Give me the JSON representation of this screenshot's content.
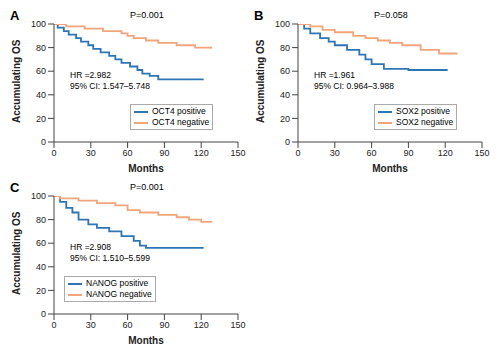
{
  "chart_data": [
    {
      "type": "step",
      "title": "A",
      "xlabel": "Months",
      "ylabel": "Accumulating OS",
      "xlim": [
        0,
        150
      ],
      "xticks": [
        0,
        30,
        60,
        90,
        120,
        150
      ],
      "ylim": [
        0,
        100
      ],
      "yticks": [
        0,
        20,
        40,
        60,
        80,
        100
      ],
      "grid": false,
      "annotations": [
        "P=0.001",
        "HR =2.982",
        "95% CI: 1.547–5.748"
      ],
      "series": [
        {
          "name": "OCT4 positive",
          "color": "#2E75B6",
          "x": [
            0,
            3,
            8,
            12,
            18,
            22,
            28,
            32,
            38,
            45,
            50,
            55,
            62,
            68,
            72,
            78,
            85,
            122
          ],
          "values": [
            100,
            97,
            94,
            91,
            88,
            85,
            82,
            79,
            76,
            73,
            70,
            67,
            64,
            61,
            58,
            56,
            53,
            53
          ]
        },
        {
          "name": "OCT4 negative",
          "color": "#F2A57A",
          "x": [
            0,
            10,
            25,
            40,
            55,
            60,
            65,
            75,
            85,
            100,
            115,
            128
          ],
          "values": [
            100,
            98,
            96,
            94,
            92,
            90,
            88,
            86,
            84,
            82,
            80,
            79
          ]
        }
      ]
    },
    {
      "type": "step",
      "title": "B",
      "xlabel": "Months",
      "ylabel": "Accumulating OS",
      "xlim": [
        0,
        150
      ],
      "xticks": [
        0,
        30,
        60,
        90,
        120,
        150
      ],
      "ylim": [
        0,
        100
      ],
      "yticks": [
        0,
        20,
        40,
        60,
        80,
        100
      ],
      "grid": false,
      "annotations": [
        "P=0.058",
        "HR =1.961",
        "95% CI: 0.964–3.988"
      ],
      "series": [
        {
          "name": "SOX2 positive",
          "color": "#2E75B6",
          "x": [
            0,
            5,
            10,
            18,
            25,
            30,
            40,
            50,
            55,
            60,
            70,
            90,
            122
          ],
          "values": [
            100,
            96,
            92,
            88,
            85,
            82,
            78,
            74,
            70,
            66,
            62,
            61,
            61
          ]
        },
        {
          "name": "SOX2 negative",
          "color": "#F2A57A",
          "x": [
            0,
            10,
            20,
            30,
            45,
            55,
            65,
            75,
            85,
            100,
            115,
            130
          ],
          "values": [
            100,
            98,
            95,
            93,
            90,
            88,
            86,
            84,
            82,
            78,
            75,
            75
          ]
        }
      ]
    },
    {
      "type": "step",
      "title": "C",
      "xlabel": "Months",
      "ylabel": "Accumulating OS",
      "xlim": [
        0,
        150
      ],
      "xticks": [
        0,
        30,
        60,
        90,
        120,
        150
      ],
      "ylim": [
        0,
        100
      ],
      "yticks": [
        0,
        20,
        40,
        60,
        80,
        100
      ],
      "grid": false,
      "annotations": [
        "P=0.001",
        "HR =2.908",
        "95% CI: 1.510–5.599"
      ],
      "series": [
        {
          "name": "NANOG positive",
          "color": "#2E75B6",
          "x": [
            0,
            5,
            10,
            15,
            20,
            28,
            35,
            45,
            55,
            65,
            70,
            75,
            122
          ],
          "values": [
            100,
            95,
            90,
            86,
            80,
            76,
            73,
            70,
            66,
            62,
            58,
            56,
            56
          ]
        },
        {
          "name": "NANOG negative",
          "color": "#F2A57A",
          "x": [
            0,
            5,
            20,
            35,
            50,
            60,
            70,
            85,
            100,
            110,
            120,
            128
          ],
          "values": [
            100,
            98,
            96,
            94,
            92,
            88,
            86,
            84,
            82,
            80,
            78,
            79
          ]
        }
      ]
    }
  ]
}
